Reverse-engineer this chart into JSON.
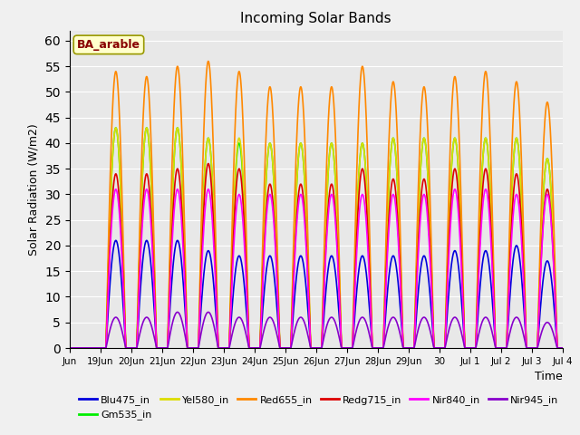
{
  "title": "Incoming Solar Bands",
  "xlabel": "Time",
  "ylabel": "Solar Radiation (W/m2)",
  "ylim": [
    0,
    62
  ],
  "yticks": [
    0,
    5,
    10,
    15,
    20,
    25,
    30,
    35,
    40,
    45,
    50,
    55,
    60
  ],
  "annotation": "BA_arable",
  "annotation_color": "#880000",
  "annotation_facecolor": "#ffffcc",
  "annotation_edgecolor": "#999900",
  "plot_bg_color": "#e8e8e8",
  "fig_bg_color": "#f0f0f0",
  "bands": [
    {
      "name": "Blu475_in",
      "color": "#0000dd",
      "linewidth": 1.2
    },
    {
      "name": "Gm535_in",
      "color": "#00ee00",
      "linewidth": 1.2
    },
    {
      "name": "Yel580_in",
      "color": "#dddd00",
      "linewidth": 1.2
    },
    {
      "name": "Red655_in",
      "color": "#ff8800",
      "linewidth": 1.2
    },
    {
      "name": "Redg715_in",
      "color": "#dd0000",
      "linewidth": 1.2
    },
    {
      "name": "Nir840_in",
      "color": "#ff00ff",
      "linewidth": 1.2
    },
    {
      "name": "Nir945_in",
      "color": "#8800cc",
      "linewidth": 1.2
    }
  ],
  "x_tick_labels": [
    "Jun",
    "19Jun",
    "20Jun",
    "21Jun",
    "22Jun",
    "23Jun",
    "24Jun",
    "25Jun",
    "26Jun",
    "27Jun",
    "28Jun",
    "29Jun",
    "30",
    "Jul 1",
    "Jul 2",
    "Jul 3",
    "Jul 4"
  ],
  "n_days": 16,
  "points_per_day": 288,
  "band_peaks": {
    "Blu475_in": [
      0,
      21,
      21,
      21,
      19,
      18,
      18,
      18,
      18,
      18,
      18,
      18,
      19,
      19,
      20,
      17
    ],
    "Gm535_in": [
      0,
      43,
      43,
      43,
      41,
      40,
      40,
      40,
      40,
      40,
      41,
      41,
      41,
      41,
      41,
      37
    ],
    "Yel580_in": [
      0,
      43,
      43,
      43,
      41,
      41,
      40,
      40,
      40,
      40,
      41,
      41,
      41,
      41,
      41,
      37
    ],
    "Red655_in": [
      0,
      54,
      53,
      55,
      56,
      54,
      51,
      51,
      51,
      55,
      52,
      51,
      53,
      54,
      52,
      48
    ],
    "Redg715_in": [
      0,
      34,
      34,
      35,
      36,
      35,
      32,
      32,
      32,
      35,
      33,
      33,
      35,
      35,
      34,
      31
    ],
    "Nir840_in": [
      0,
      31,
      31,
      31,
      31,
      30,
      30,
      30,
      30,
      30,
      30,
      30,
      31,
      31,
      30,
      30
    ],
    "Nir945_in": [
      0,
      6,
      6,
      7,
      7,
      6,
      6,
      6,
      6,
      6,
      6,
      6,
      6,
      6,
      6,
      5
    ]
  }
}
